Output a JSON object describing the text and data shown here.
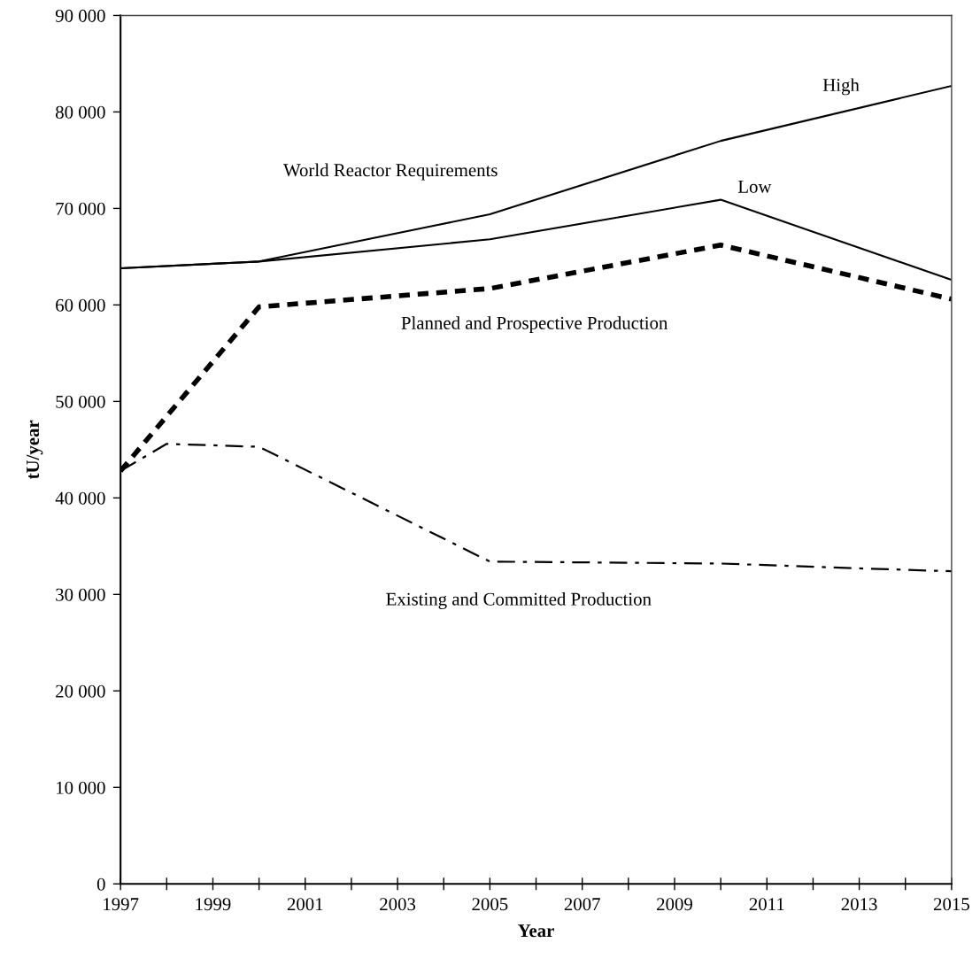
{
  "chart_data": {
    "type": "line",
    "xlabel": "Year",
    "ylabel": "tU/year",
    "x": [
      1997,
      2000,
      2005,
      2010,
      2015
    ],
    "series": [
      {
        "name": "High",
        "color": "#000000",
        "line_style": "solid",
        "values": [
          63800,
          64500,
          69400,
          77000,
          82700
        ]
      },
      {
        "name": "Low",
        "color": "#000000",
        "line_style": "solid",
        "values": [
          63800,
          64500,
          66800,
          70900,
          62600
        ]
      },
      {
        "name": "Planned and Prospective Production",
        "color": "#000000",
        "line_style": "dashed",
        "values": [
          42800,
          59800,
          61700,
          66200,
          60600
        ]
      },
      {
        "name": "Existing and Committed Production",
        "color": "#000000",
        "line_style": "dashdot",
        "x": [
          1997,
          1998,
          2000,
          2005,
          2010,
          2013,
          2015
        ],
        "values": [
          42800,
          45600,
          45300,
          33400,
          33200,
          32700,
          32400
        ]
      }
    ],
    "annotations": [
      "World Reactor Requirements"
    ],
    "xlim": [
      1997,
      2015
    ],
    "xticks": [
      1997,
      {
        "value": 1998,
        "label": null
      },
      1999,
      {
        "value": 2000,
        "label": null
      },
      2001,
      {
        "value": 2002,
        "label": null
      },
      2003,
      {
        "value": 2004,
        "label": null
      },
      2005,
      {
        "value": 2006,
        "label": null
      },
      2007,
      {
        "value": 2008,
        "label": null
      },
      2009,
      {
        "value": 2010,
        "label": null
      },
      2011,
      {
        "value": 2012,
        "label": null
      },
      2013,
      {
        "value": 2014,
        "label": null
      },
      2015
    ],
    "ylim": [
      0,
      90000
    ],
    "yticks": [
      0,
      {
        "value": 10000,
        "label": "10 000"
      },
      {
        "value": 20000,
        "label": "20 000"
      },
      {
        "value": 30000,
        "label": "30 000"
      },
      {
        "value": 40000,
        "label": "40 000"
      },
      {
        "value": 50000,
        "label": "50 000"
      },
      {
        "value": 60000,
        "label": "60 000"
      },
      {
        "value": 70000,
        "label": "70 000"
      },
      {
        "value": 80000,
        "label": "80 000"
      },
      {
        "value": 90000,
        "label": "90 000"
      }
    ],
    "grid": false,
    "marker": "none"
  }
}
